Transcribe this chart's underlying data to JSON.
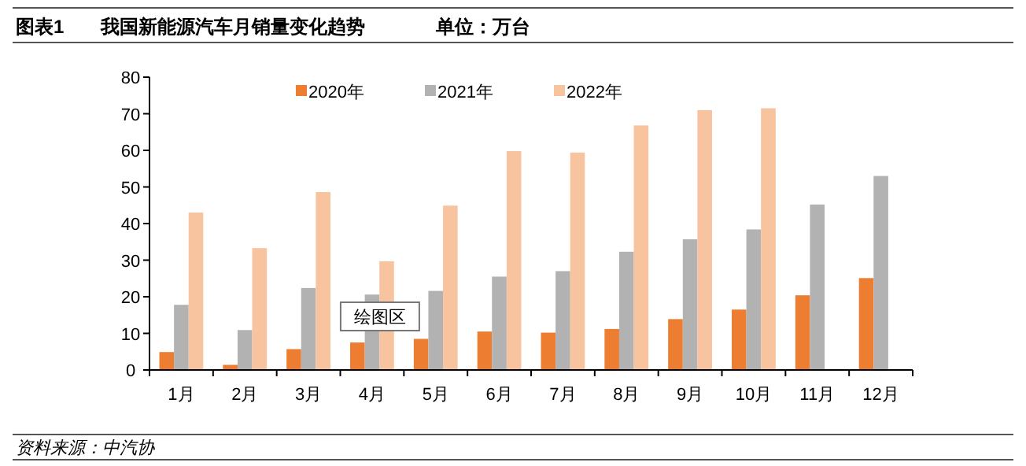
{
  "chart_data": {
    "type": "bar",
    "title": "我国新能源汽车月销量变化趋势",
    "subtitle": "单位：万台",
    "annotations": [
      "图表1",
      "资料来源：中汽协",
      "绘图区"
    ],
    "categories": [
      "1月",
      "2月",
      "3月",
      "4月",
      "5月",
      "6月",
      "7月",
      "8月",
      "9月",
      "10月",
      "11月",
      "12月"
    ],
    "series": [
      {
        "name": "2020年",
        "color": "#ed7d31",
        "values": [
          4.9,
          1.4,
          5.7,
          7.5,
          8.5,
          10.5,
          10.2,
          11.2,
          13.9,
          16.5,
          20.4,
          25.1
        ]
      },
      {
        "name": "2021年",
        "color": "#b2b2b2",
        "values": [
          17.8,
          10.9,
          22.4,
          20.6,
          21.6,
          25.5,
          27.0,
          32.3,
          35.7,
          38.4,
          45.2,
          53.0
        ]
      },
      {
        "name": "2022年",
        "color": "#f8c4a0",
        "values": [
          43.0,
          33.3,
          48.6,
          29.7,
          44.9,
          59.8,
          59.4,
          66.8,
          71.0,
          71.5,
          null,
          null
        ]
      }
    ],
    "ylim": [
      0,
      80
    ],
    "yticks": [
      0,
      10,
      20,
      30,
      40,
      50,
      60,
      70,
      80
    ],
    "grid": false,
    "legend": "top"
  }
}
